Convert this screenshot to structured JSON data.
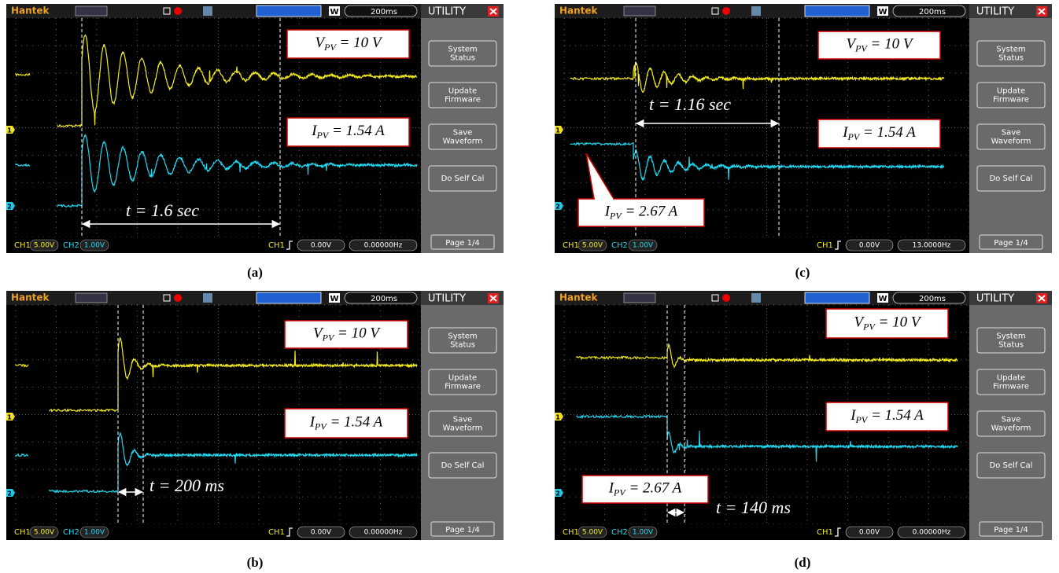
{
  "panels": [
    {
      "caption": "(a)",
      "header": {
        "brand": "Hantek",
        "mode": "W",
        "timebase": "200ms",
        "menu_title": "UTILITY"
      },
      "menu": [
        [
          "System",
          "Status"
        ],
        [
          "Update",
          "Firmware"
        ],
        [
          "Save",
          "Waveform"
        ],
        [
          "Do Self Cal"
        ]
      ],
      "page": "Page 1/4",
      "status": {
        "ch1_label": "CH1",
        "ch1_scale": "5.00V",
        "ch2_label": "CH2",
        "ch2_scale": "1.00V",
        "trigger_source": "CH1",
        "trigger_level": "0.00V",
        "frequency": "0.00000Hz"
      },
      "channel_markers": [
        "1",
        "2"
      ],
      "annotations": [
        {
          "symbol": "V",
          "subscript": "PV",
          "text": " = 10 V"
        },
        {
          "symbol": "I",
          "subscript": "PV",
          "text": " = 1.54 A"
        }
      ],
      "interval": "t = 1.6 sec"
    },
    {
      "caption": "(b)",
      "header": {
        "brand": "Hantek",
        "mode": "W",
        "timebase": "200ms",
        "menu_title": "UTILITY"
      },
      "menu": [
        [
          "System",
          "Status"
        ],
        [
          "Update",
          "Firmware"
        ],
        [
          "Save",
          "Waveform"
        ],
        [
          "Do Self Cal"
        ]
      ],
      "page": "Page 1/4",
      "status": {
        "ch1_label": "CH1",
        "ch1_scale": "5.00V",
        "ch2_label": "CH2",
        "ch2_scale": "1.00V",
        "trigger_source": "CH1",
        "trigger_level": "0.00V",
        "frequency": "0.00000Hz"
      },
      "channel_markers": [
        "1",
        "2"
      ],
      "annotations": [
        {
          "symbol": "V",
          "subscript": "PV",
          "text": " = 10 V"
        },
        {
          "symbol": "I",
          "subscript": "PV",
          "text": " = 1.54 A"
        }
      ],
      "interval": "t = 200 ms"
    },
    {
      "caption": "(c)",
      "header": {
        "brand": "Hantek",
        "mode": "W",
        "timebase": "200ms",
        "menu_title": "UTILITY"
      },
      "menu": [
        [
          "System",
          "Status"
        ],
        [
          "Update",
          "Firmware"
        ],
        [
          "Save",
          "Waveform"
        ],
        [
          "Do Self Cal"
        ]
      ],
      "page": "Page 1/4",
      "status": {
        "ch1_label": "CH1",
        "ch1_scale": "5.00V",
        "ch2_label": "CH2",
        "ch2_scale": "1.00V",
        "trigger_source": "CH1",
        "trigger_level": "0.00V",
        "frequency": "13.0000Hz"
      },
      "channel_markers": [
        "1",
        "2"
      ],
      "annotations": [
        {
          "symbol": "V",
          "subscript": "PV",
          "text": " = 10 V"
        },
        {
          "symbol": "I",
          "subscript": "PV",
          "text": " = 1.54 A"
        },
        {
          "symbol": "I",
          "subscript": "PV",
          "text": " = 2.67 A"
        }
      ],
      "interval": "t = 1.16 sec"
    },
    {
      "caption": "(d)",
      "header": {
        "brand": "Hantek",
        "mode": "W",
        "timebase": "200ms",
        "menu_title": "UTILITY"
      },
      "menu": [
        [
          "System",
          "Status"
        ],
        [
          "Update",
          "Firmware"
        ],
        [
          "Save",
          "Waveform"
        ],
        [
          "Do Self Cal"
        ]
      ],
      "page": "Page 1/4",
      "status": {
        "ch1_label": "CH1",
        "ch1_scale": "5.00V",
        "ch2_label": "CH2",
        "ch2_scale": "1.00V",
        "trigger_source": "CH1",
        "trigger_level": "0.00V",
        "frequency": "0.00000Hz"
      },
      "channel_markers": [
        "1",
        "2"
      ],
      "annotations": [
        {
          "symbol": "V",
          "subscript": "PV",
          "text": " = 10 V"
        },
        {
          "symbol": "I",
          "subscript": "PV",
          "text": " = 1.54 A"
        },
        {
          "symbol": "I",
          "subscript": "PV",
          "text": " = 2.67 A"
        }
      ],
      "interval": "t = 140 ms"
    }
  ]
}
